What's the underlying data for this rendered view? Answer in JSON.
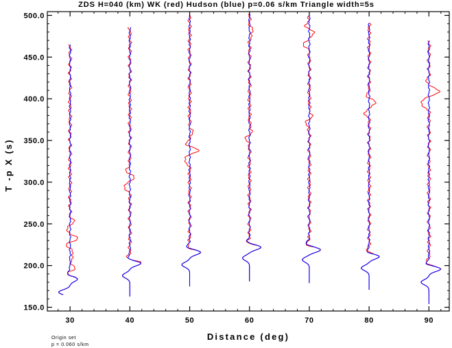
{
  "chart_data": {
    "type": "line",
    "title": "ZDS H=040 (km) WK (red) Hudson (blue) p=0.06 s/km Triangle width=5s",
    "xlabel": "Distance (deg)",
    "ylabel": "T -p X (s)",
    "xlim": [
      26.2,
      93.4
    ],
    "ylim": [
      145.5,
      504.5
    ],
    "x_ticks": [
      30,
      40,
      50,
      60,
      70,
      80,
      90
    ],
    "x_tick_labels": [
      "30",
      "40",
      "50",
      "60",
      "70",
      "80",
      "90"
    ],
    "y_ticks": [
      150,
      200,
      250,
      300,
      350,
      400,
      450,
      500
    ],
    "y_tick_labels": [
      "150.0",
      "200.0",
      "250.0",
      "300.0",
      "350.0",
      "400.0",
      "450.0",
      "500.0"
    ],
    "colors": {
      "red": "#ff0000",
      "blue": "#0000ff",
      "axis": "#000000"
    },
    "series": [
      {
        "name": "WK",
        "color": "#ff0000"
      },
      {
        "name": "Hudson",
        "color": "#0000ff"
      }
    ],
    "traces": [
      {
        "distance": 30,
        "t_start": 165,
        "t_end": 465,
        "pulses": [
          {
            "t": 168,
            "a": -2.6,
            "s": 3
          },
          {
            "t": 184,
            "a": 1.8,
            "s": 3
          },
          {
            "t": 190,
            "a": -0.8,
            "s": 3
          }
        ],
        "red_arrivals": [
          {
            "t": 197,
            "a": 1.0,
            "s": 4
          },
          {
            "t": 214,
            "a": 0.8,
            "s": 4
          },
          {
            "t": 226,
            "a": -1.0,
            "s": 4
          },
          {
            "t": 233,
            "a": 2.0,
            "s": 4
          },
          {
            "t": 242,
            "a": -1.1,
            "s": 4
          },
          {
            "t": 252,
            "a": 0.8,
            "s": 4
          }
        ]
      },
      {
        "distance": 40,
        "t_start": 163,
        "t_end": 486,
        "pulses": [
          {
            "t": 188,
            "a": -1.7,
            "s": 3
          },
          {
            "t": 203,
            "a": 2.7,
            "s": 3
          },
          {
            "t": 208,
            "a": -0.8,
            "s": 3
          }
        ],
        "red_arrivals": [
          {
            "t": 296,
            "a": -1.6,
            "s": 4
          },
          {
            "t": 304,
            "a": 1.2,
            "s": 4
          },
          {
            "t": 314,
            "a": -0.8,
            "s": 4
          }
        ]
      },
      {
        "distance": 50,
        "t_start": 175,
        "t_end": 500,
        "pulses": [
          {
            "t": 201,
            "a": -1.8,
            "s": 3
          },
          {
            "t": 216,
            "a": 2.6,
            "s": 3
          },
          {
            "t": 222,
            "a": -0.8,
            "s": 3
          }
        ],
        "red_arrivals": [
          {
            "t": 328,
            "a": -1.4,
            "s": 4
          },
          {
            "t": 338,
            "a": 2.0,
            "s": 4
          },
          {
            "t": 346,
            "a": -1.0,
            "s": 4
          },
          {
            "t": 358,
            "a": 0.7,
            "s": 4
          }
        ]
      },
      {
        "distance": 60,
        "t_start": 181,
        "t_end": 502,
        "pulses": [
          {
            "t": 209,
            "a": -1.6,
            "s": 3
          },
          {
            "t": 222,
            "a": 2.7,
            "s": 3
          },
          {
            "t": 228,
            "a": -0.7,
            "s": 3
          }
        ],
        "red_arrivals": [
          {
            "t": 352,
            "a": -0.8,
            "s": 4
          },
          {
            "t": 362,
            "a": 0.6,
            "s": 4
          },
          {
            "t": 480,
            "a": 0.8,
            "s": 4
          }
        ]
      },
      {
        "distance": 70,
        "t_start": 179,
        "t_end": 500,
        "pulses": [
          {
            "t": 207,
            "a": -1.6,
            "s": 3
          },
          {
            "t": 219,
            "a": 2.6,
            "s": 3
          },
          {
            "t": 226,
            "a": -0.8,
            "s": 3
          }
        ],
        "red_arrivals": [
          {
            "t": 370,
            "a": -0.8,
            "s": 4
          },
          {
            "t": 380,
            "a": 0.6,
            "s": 4
          },
          {
            "t": 466,
            "a": -1.3,
            "s": 4
          },
          {
            "t": 478,
            "a": 1.1,
            "s": 4
          },
          {
            "t": 488,
            "a": -0.8,
            "s": 4
          }
        ]
      },
      {
        "distance": 80,
        "t_start": 171,
        "t_end": 491,
        "pulses": [
          {
            "t": 197,
            "a": -1.8,
            "s": 3
          },
          {
            "t": 211,
            "a": 2.5,
            "s": 3
          },
          {
            "t": 216,
            "a": -0.8,
            "s": 3
          }
        ],
        "red_arrivals": [
          {
            "t": 384,
            "a": -1.0,
            "s": 4
          },
          {
            "t": 395,
            "a": 1.6,
            "s": 4
          },
          {
            "t": 403,
            "a": -0.6,
            "s": 4
          }
        ]
      },
      {
        "distance": 90,
        "t_start": 154,
        "t_end": 470,
        "pulses": [
          {
            "t": 180,
            "a": -1.8,
            "s": 3
          },
          {
            "t": 196,
            "a": 2.8,
            "s": 3
          },
          {
            "t": 202,
            "a": -0.8,
            "s": 3
          }
        ],
        "red_arrivals": [
          {
            "t": 395,
            "a": -2.0,
            "s": 4
          },
          {
            "t": 410,
            "a": 2.5,
            "s": 4
          },
          {
            "t": 418,
            "a": -0.8,
            "s": 4
          }
        ]
      }
    ]
  },
  "annotations": {
    "origin_line1": "Origin set",
    "origin_line2": "p = 0.060 s/km"
  }
}
